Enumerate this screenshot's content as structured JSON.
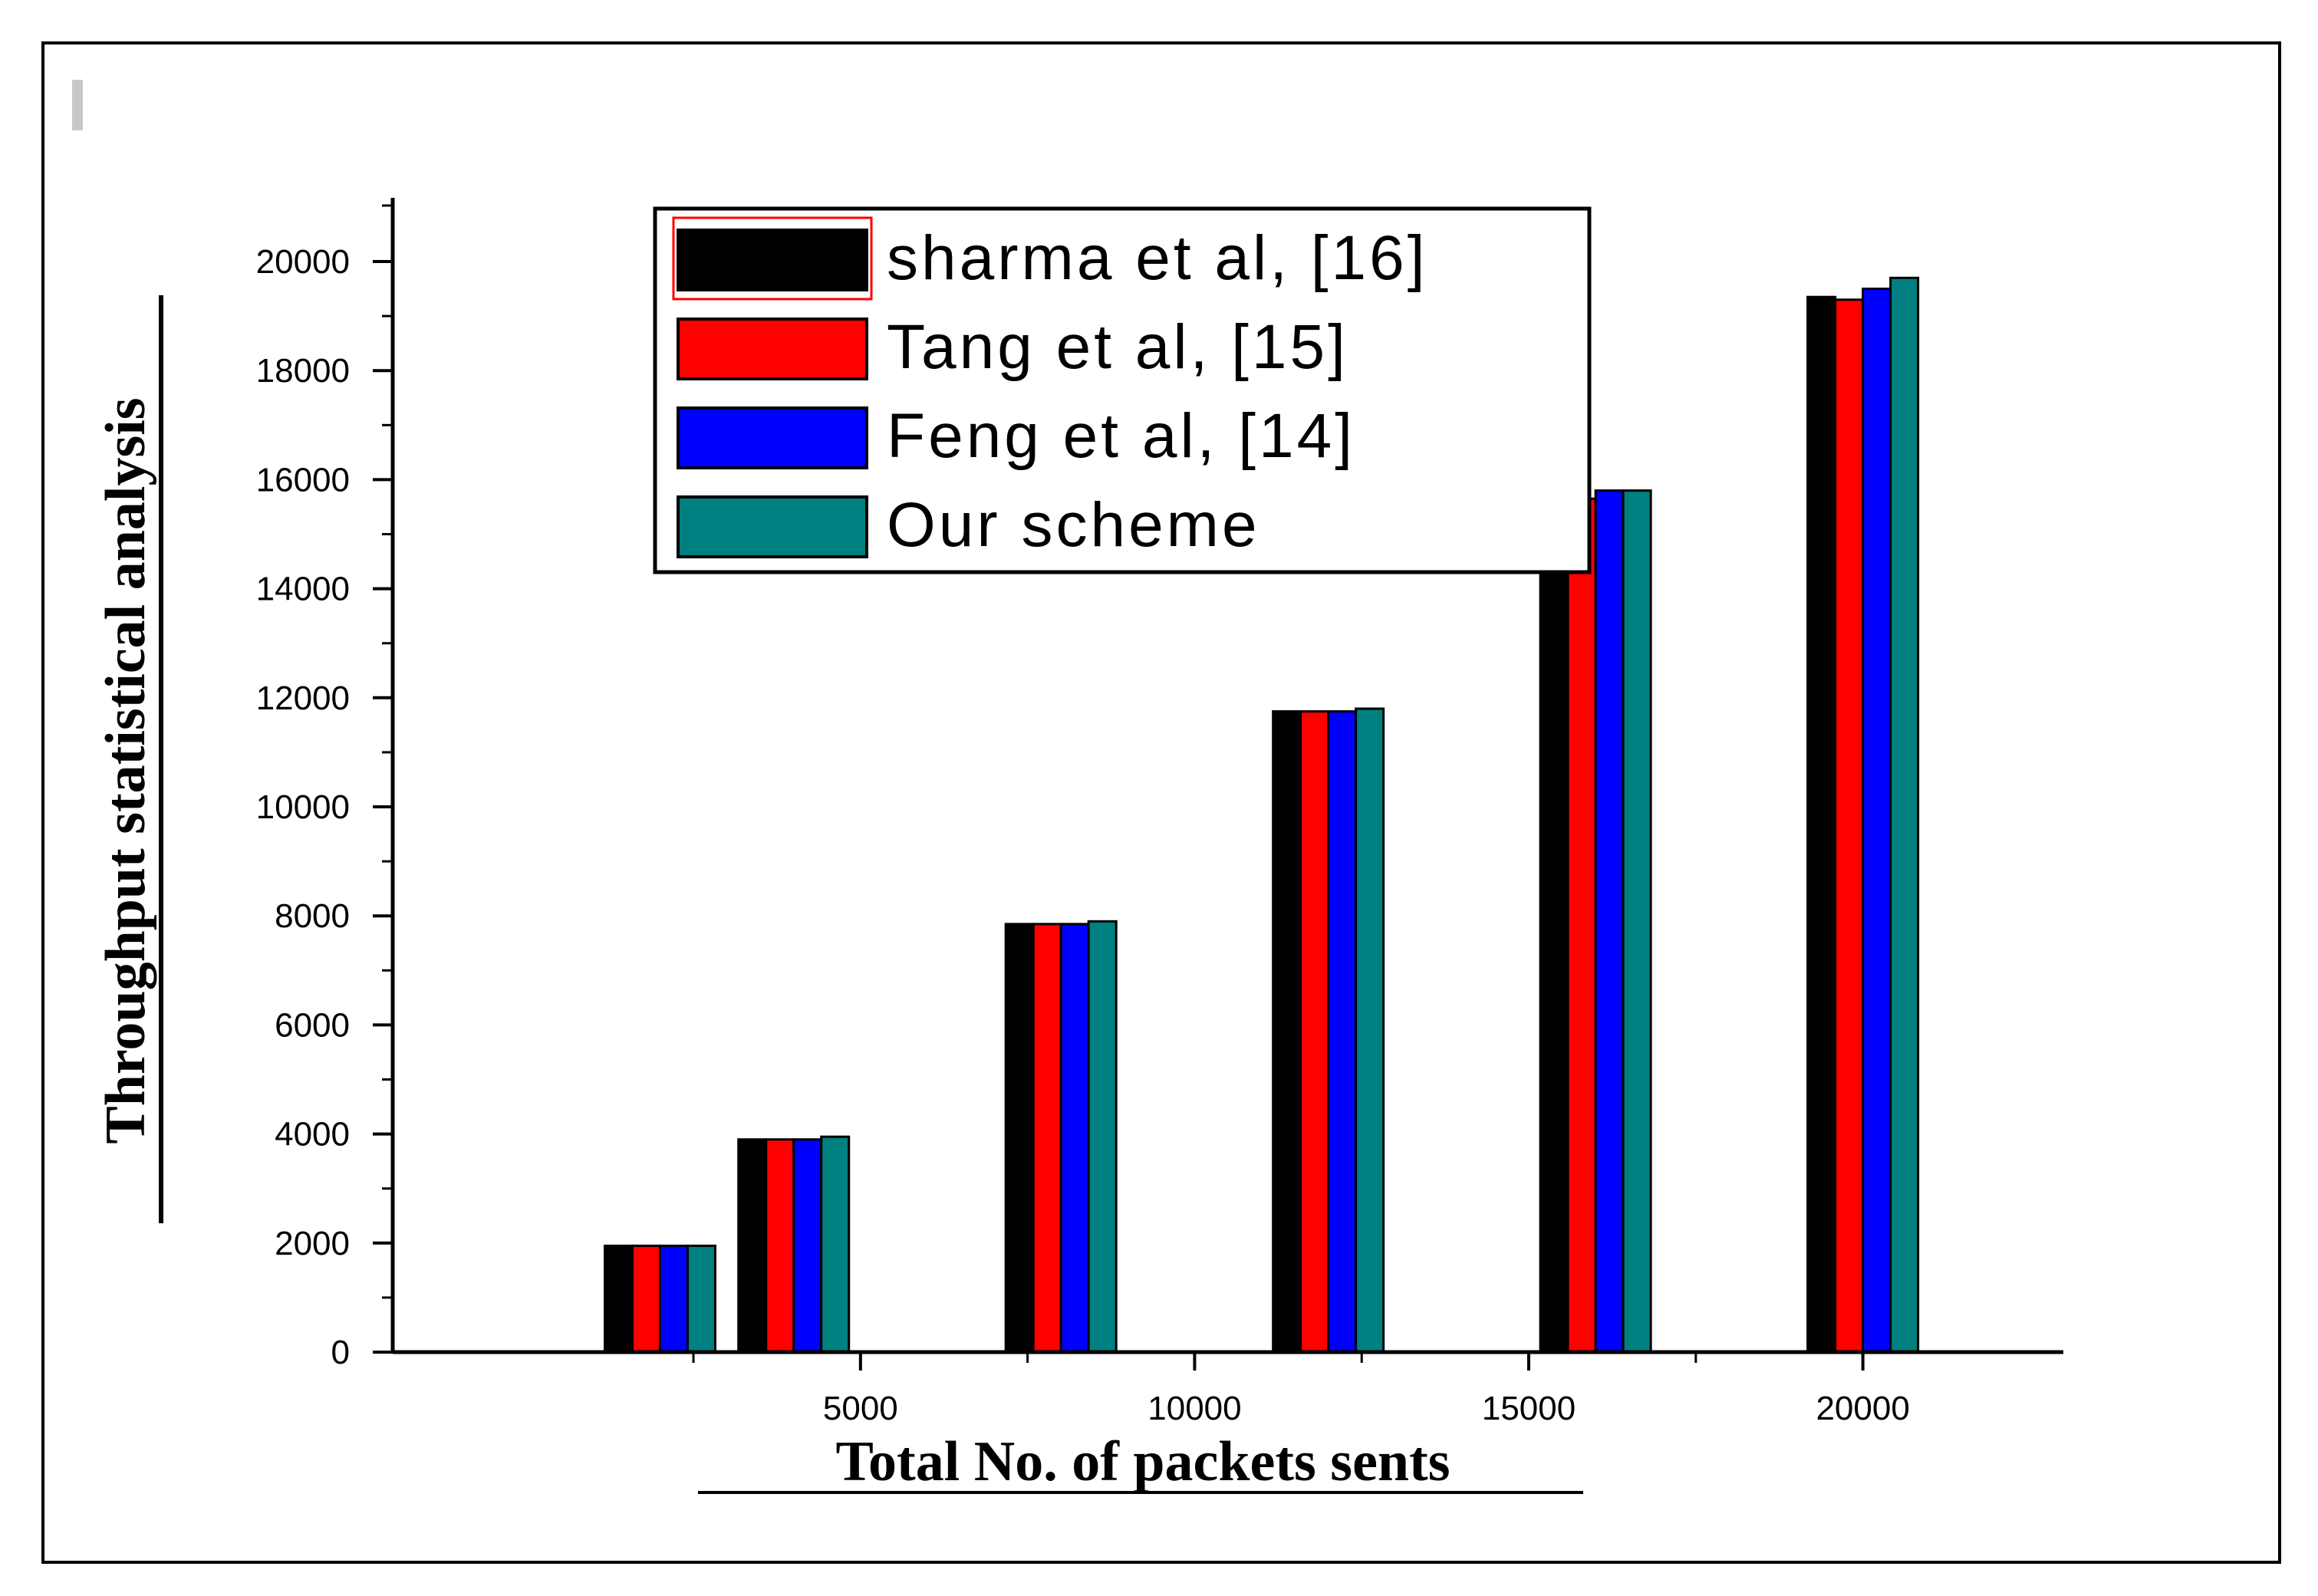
{
  "chart_data": {
    "type": "bar",
    "categories": [
      "2000",
      "4000",
      "8000",
      "12000",
      "16000",
      "20000"
    ],
    "series": [
      {
        "name": "sharma et al, [16]",
        "color": "#000000",
        "values": [
          1950,
          3900,
          7850,
          11750,
          15700,
          19350
        ]
      },
      {
        "name": "Tang et al, [15]",
        "color": "#ff0000",
        "values": [
          1950,
          3900,
          7850,
          11750,
          15650,
          19300
        ]
      },
      {
        "name": "Feng et al, [14]",
        "color": "#0000ff",
        "values": [
          1950,
          3900,
          7850,
          11750,
          15800,
          19500
        ]
      },
      {
        "name": "Our scheme",
        "color": "#008080",
        "values": [
          1950,
          3950,
          7900,
          11800,
          15800,
          19700
        ]
      }
    ],
    "xlabel": "Total No. of packets sents",
    "ylabel": "Throughput statistical analysis",
    "xlim": [
      -2000,
      23000
    ],
    "ylim": [
      0,
      20000
    ],
    "xticks": [
      5000,
      10000,
      15000,
      20000
    ],
    "yticks": [
      0,
      2000,
      4000,
      6000,
      8000,
      10000,
      12000,
      14000,
      16000,
      18000,
      20000
    ],
    "legend_position": "top-center",
    "grid": false
  }
}
